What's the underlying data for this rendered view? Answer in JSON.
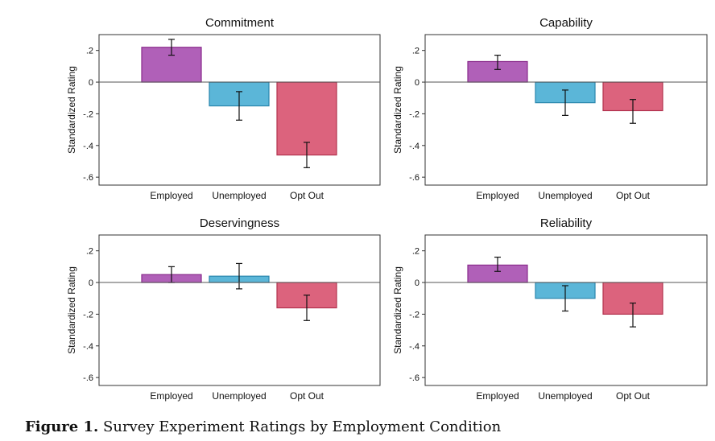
{
  "caption": {
    "label": "Figure 1.",
    "text": "Survey Experiment Ratings by Employment Condition"
  },
  "colors": {
    "Employed": {
      "fill": "#b060b8",
      "stroke": "#8a2c8c"
    },
    "Unemployed": {
      "fill": "#5bb6d8",
      "stroke": "#2a86ad"
    },
    "Opt Out": {
      "fill": "#dc637d",
      "stroke": "#b2324e"
    }
  },
  "chart_data": [
    {
      "type": "bar",
      "title": "Commitment",
      "ylabel": "Standardized Rating",
      "categories": [
        "Employed",
        "Unemployed",
        "Opt Out"
      ],
      "values": [
        0.22,
        -0.15,
        -0.46
      ],
      "ci_low": [
        0.17,
        -0.24,
        -0.54
      ],
      "ci_high": [
        0.27,
        -0.06,
        -0.38
      ],
      "ylim": [
        -0.65,
        0.3
      ],
      "yticks": [
        ".2",
        "0",
        "-.2",
        "-.4",
        "-.6"
      ],
      "ytick_values": [
        0.2,
        0,
        -0.2,
        -0.4,
        -0.6
      ]
    },
    {
      "type": "bar",
      "title": "Capability",
      "ylabel": "Standardized Rating",
      "categories": [
        "Employed",
        "Unemployed",
        "Opt Out"
      ],
      "values": [
        0.13,
        -0.13,
        -0.18
      ],
      "ci_low": [
        0.08,
        -0.21,
        -0.26
      ],
      "ci_high": [
        0.17,
        -0.05,
        -0.11
      ],
      "ylim": [
        -0.65,
        0.3
      ],
      "yticks": [
        ".2",
        "0",
        "-.2",
        "-.4",
        "-.6"
      ],
      "ytick_values": [
        0.2,
        0,
        -0.2,
        -0.4,
        -0.6
      ]
    },
    {
      "type": "bar",
      "title": "Deservingness",
      "ylabel": "Standardized Rating",
      "categories": [
        "Employed",
        "Unemployed",
        "Opt Out"
      ],
      "values": [
        0.05,
        0.04,
        -0.16
      ],
      "ci_low": [
        0.0,
        -0.04,
        -0.24
      ],
      "ci_high": [
        0.1,
        0.12,
        -0.08
      ],
      "ylim": [
        -0.65,
        0.3
      ],
      "yticks": [
        ".2",
        "0",
        "-.2",
        "-.4",
        "-.6"
      ],
      "ytick_values": [
        0.2,
        0,
        -0.2,
        -0.4,
        -0.6
      ]
    },
    {
      "type": "bar",
      "title": "Reliability",
      "ylabel": "Standardized Rating",
      "categories": [
        "Employed",
        "Unemployed",
        "Opt Out"
      ],
      "values": [
        0.11,
        -0.1,
        -0.2
      ],
      "ci_low": [
        0.07,
        -0.18,
        -0.28
      ],
      "ci_high": [
        0.16,
        -0.02,
        -0.13
      ],
      "ylim": [
        -0.65,
        0.3
      ],
      "yticks": [
        ".2",
        "0",
        "-.2",
        "-.4",
        "-.6"
      ],
      "ytick_values": [
        0.2,
        0,
        -0.2,
        -0.4,
        -0.6
      ]
    }
  ]
}
